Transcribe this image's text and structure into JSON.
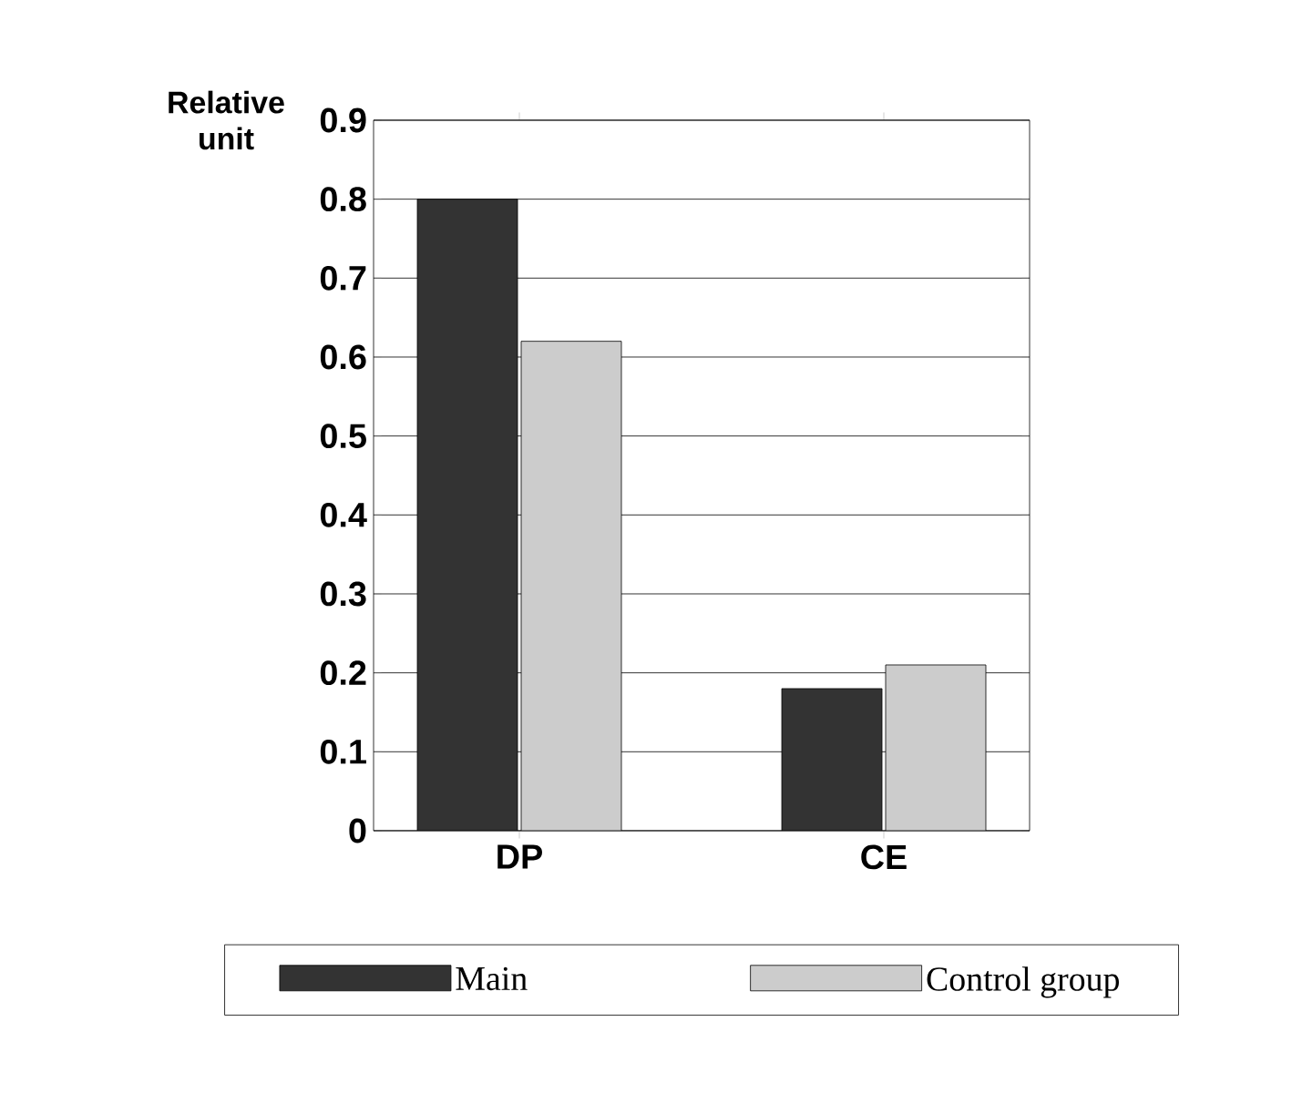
{
  "chart_data": {
    "type": "bar",
    "ylabel": "Relative unit",
    "categories": [
      "DP",
      "CE"
    ],
    "series": [
      {
        "name": "Main",
        "color": "#333333",
        "values": [
          0.8,
          0.18
        ]
      },
      {
        "name": "Control group",
        "color": "#cccccc",
        "values": [
          0.62,
          0.21
        ]
      }
    ],
    "ylim": [
      0,
      0.9
    ],
    "yticks": [
      0,
      0.1,
      0.2,
      0.3,
      0.4,
      0.5,
      0.6,
      0.7,
      0.8,
      0.9
    ],
    "grid": "y",
    "legend": "bottom"
  }
}
